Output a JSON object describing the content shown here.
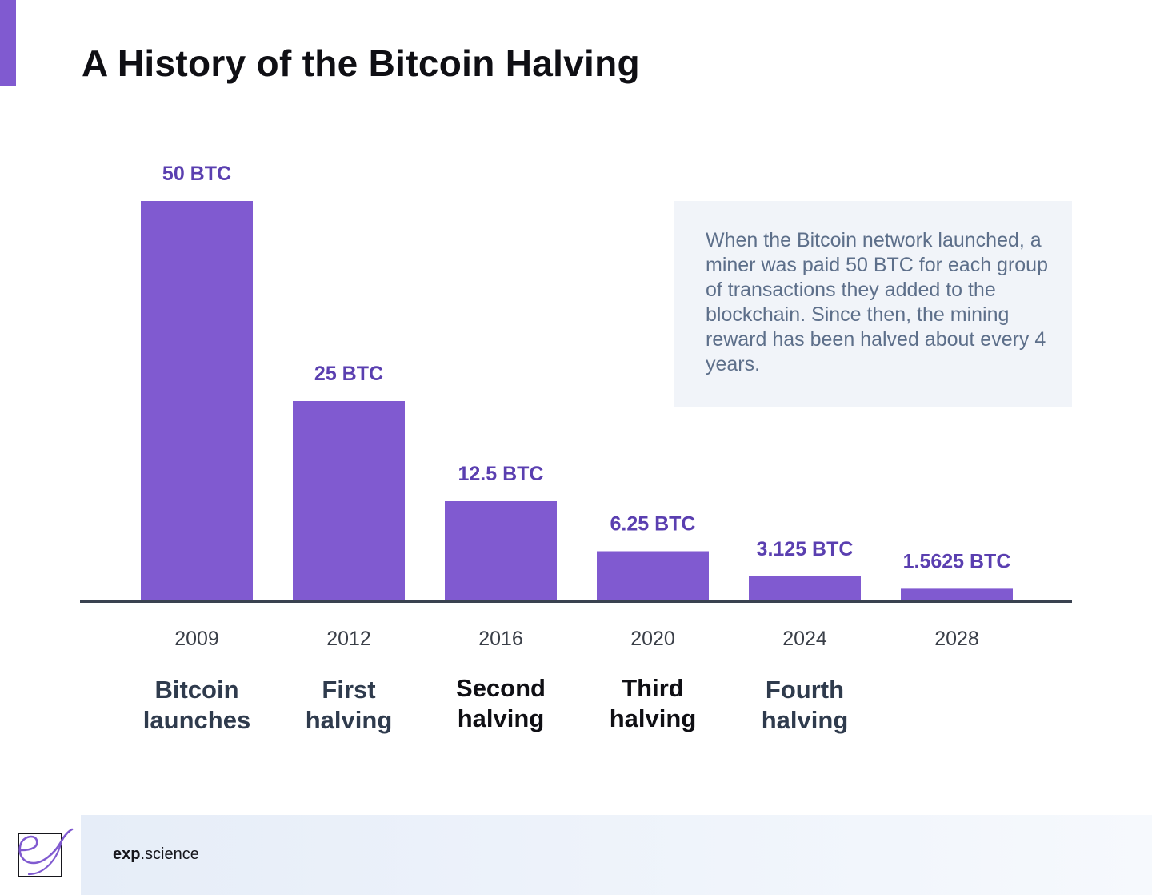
{
  "title": "A History of the Bitcoin Halving",
  "info_box": {
    "text": "When the Bitcoin network launched, a miner was paid 50 BTC for each group of transactions they added to the blockchain. Since then, the mining reward has been halved about every 4 years."
  },
  "footer": {
    "brand_bold": "exp",
    "brand_rest": ".science",
    "logo_icon": "exp-science-logo-icon"
  },
  "colors": {
    "bar": "#805ad0",
    "value_label": "#5a3fb0",
    "axis": "#3a4250",
    "year_label": "#3a3f48",
    "event_label_muted": "#2f3b4d",
    "event_label_dark": "#0f0f14",
    "accent": "#805ad0"
  },
  "chart_data": {
    "type": "bar",
    "categories": [
      "2009",
      "2012",
      "2016",
      "2020",
      "2024",
      "2028"
    ],
    "values": [
      50,
      25,
      12.5,
      6.25,
      3.125,
      1.5625
    ],
    "value_labels": [
      "50 BTC",
      "25 BTC",
      "12.5 BTC",
      "6.25 BTC",
      "3.125 BTC",
      "1.5625 BTC"
    ],
    "event_labels": [
      [
        "Bitcoin",
        "launches"
      ],
      [
        "First",
        "halving"
      ],
      [
        "Second",
        "halving"
      ],
      [
        "Third",
        "halving"
      ],
      [
        "Fourth",
        "halving"
      ],
      []
    ],
    "event_label_tone": [
      "muted",
      "muted",
      "dark",
      "dark",
      "muted",
      "muted"
    ],
    "ylim": [
      0,
      50
    ],
    "grid": false,
    "legend": "none",
    "xlabel": "",
    "ylabel": ""
  }
}
